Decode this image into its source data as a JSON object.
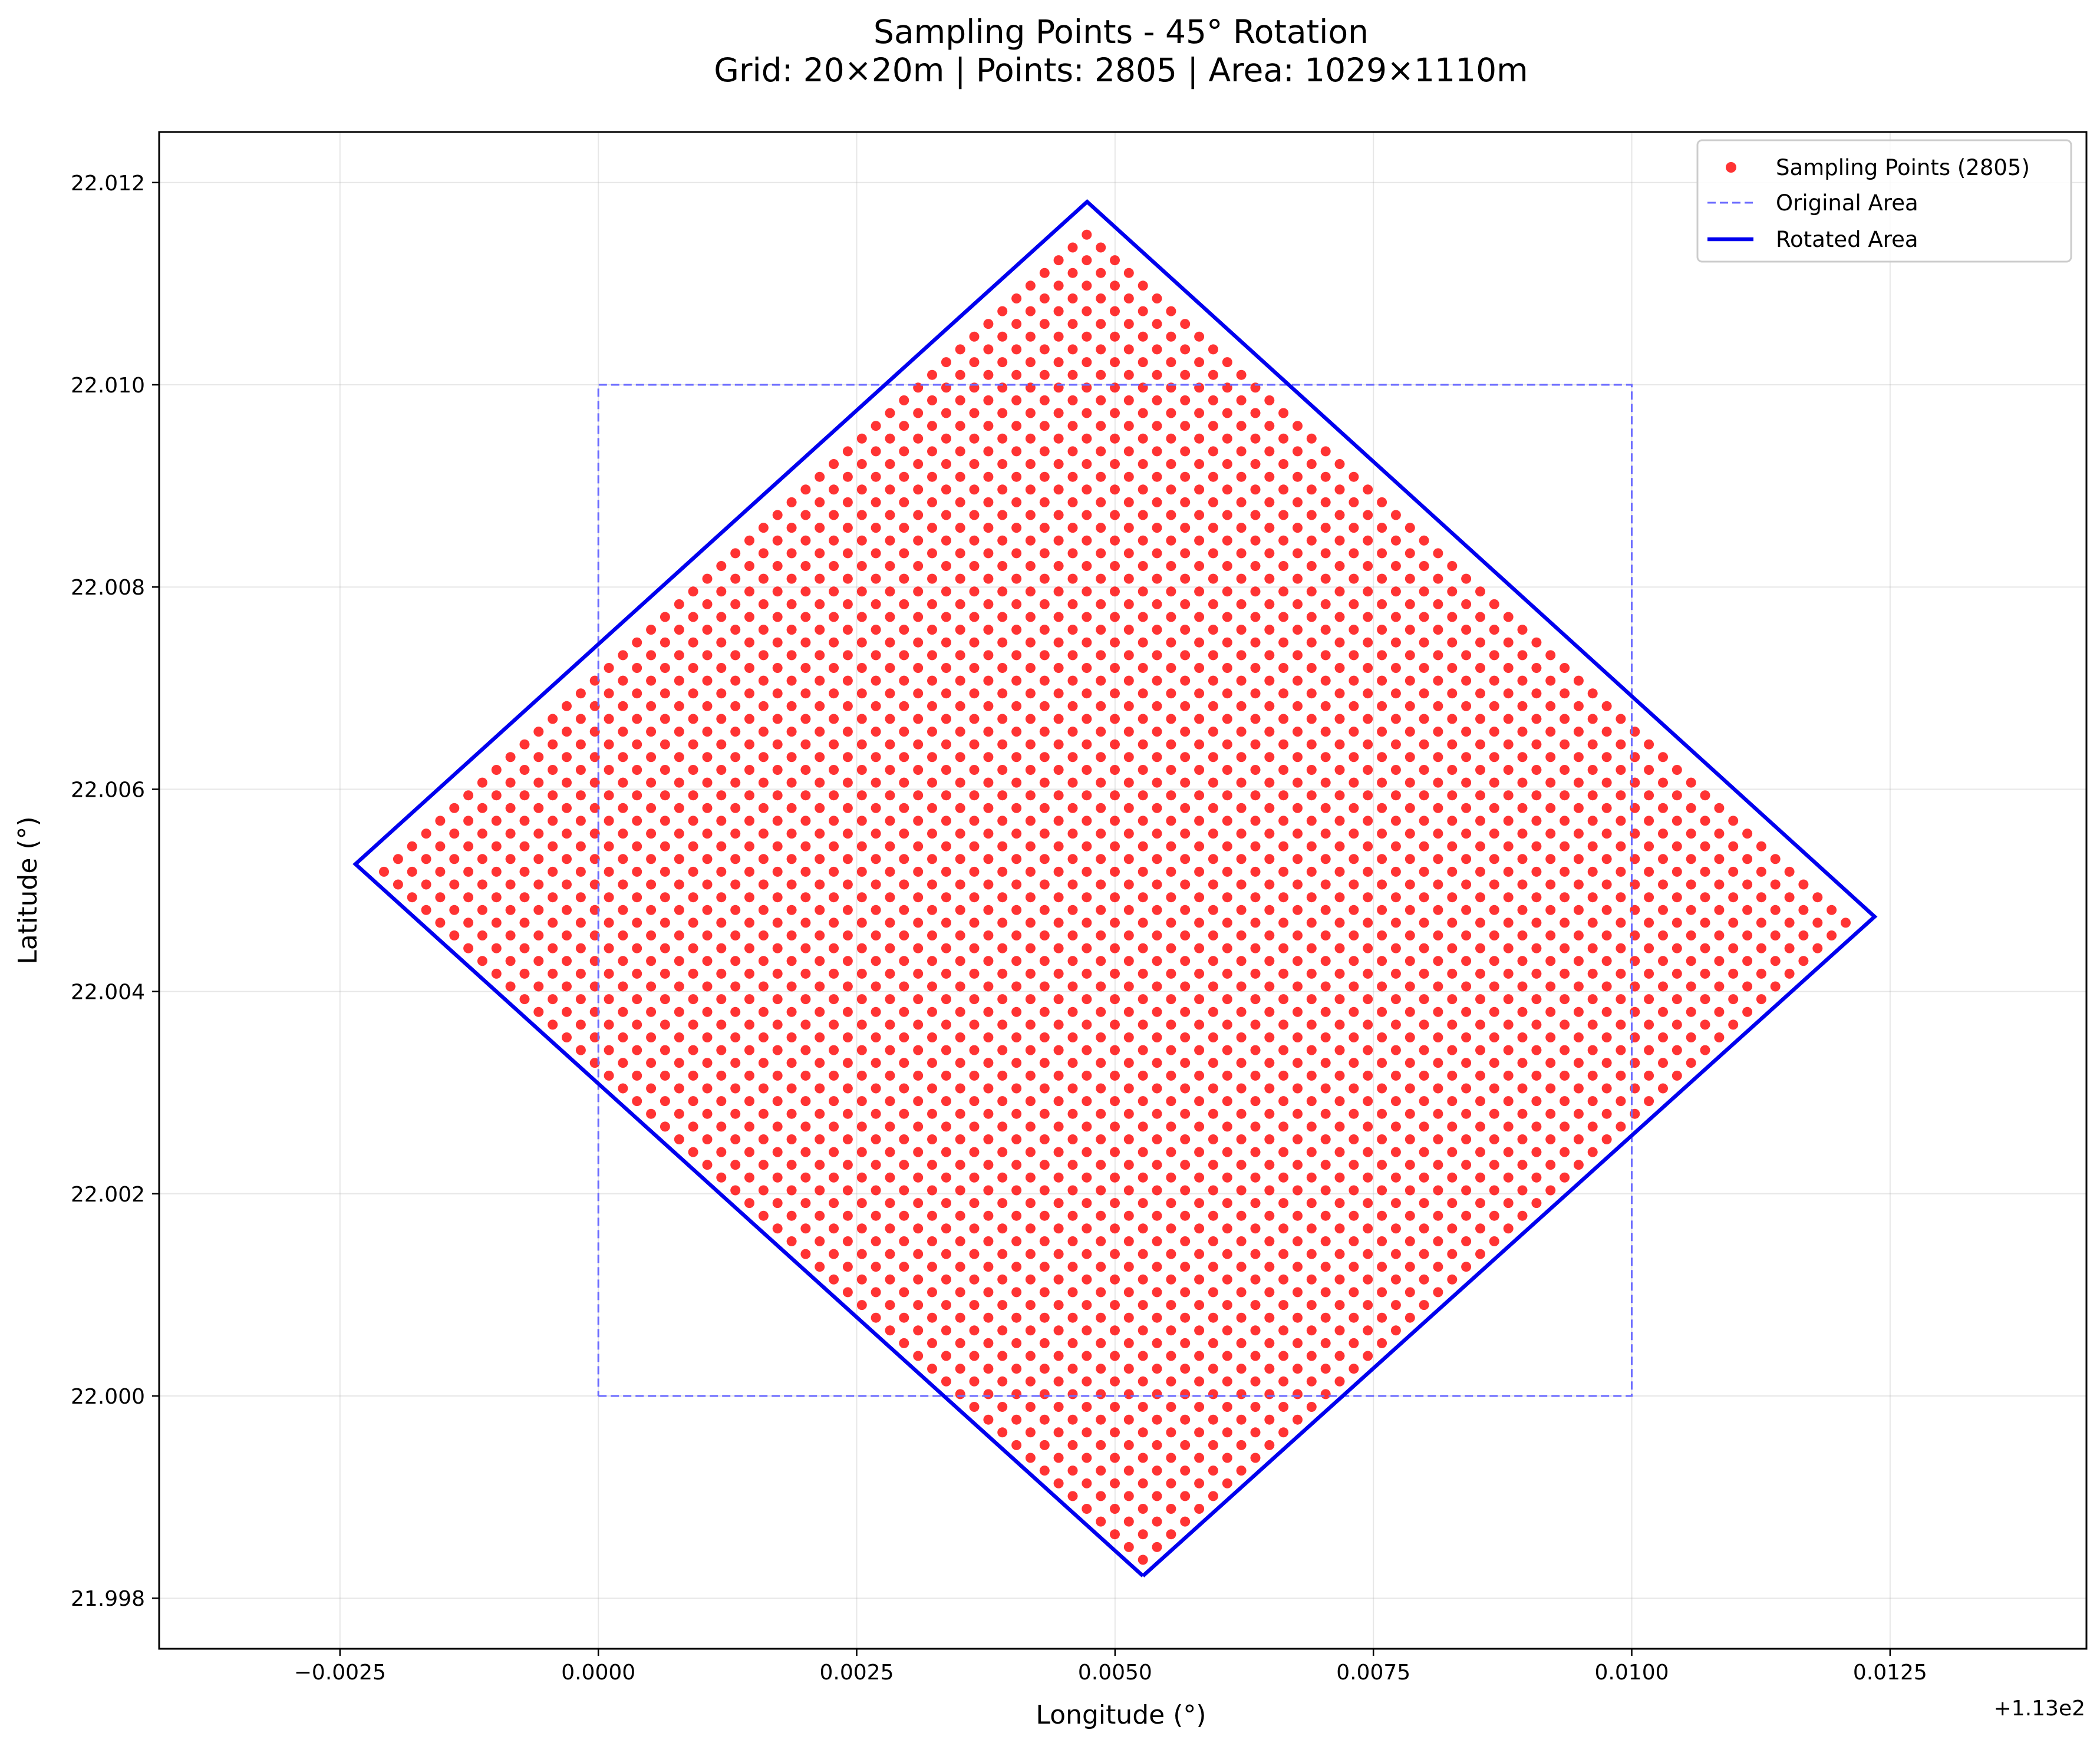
{
  "chart_data": {
    "type": "scatter",
    "title": "Sampling Points - 45° Rotation",
    "subtitle": "Grid: 20×20m | Points: 2805 | Area: 1029×1110m",
    "xlabel": "Longitude (°)",
    "ylabel": "Latitude (°)",
    "x_offset_label": "+1.13e2",
    "x_offset": 113,
    "xlim": [
      112.99575,
      113.0144
    ],
    "ylim": [
      21.9975,
      22.0125
    ],
    "x_ticks": [
      -0.0025,
      0.0,
      0.0025,
      0.005,
      0.0075,
      0.01,
      0.0125
    ],
    "x_tick_labels": [
      "−0.0025",
      "0.0000",
      "0.0025",
      "0.0050",
      "0.0075",
      "0.0100",
      "0.0125"
    ],
    "y_ticks": [
      21.998,
      22.0,
      22.002,
      22.004,
      22.006,
      22.008,
      22.01,
      22.012
    ],
    "y_tick_labels": [
      "21.998",
      "22.000",
      "22.002",
      "22.004",
      "22.006",
      "22.008",
      "22.010",
      "22.012"
    ],
    "grid": true,
    "legend_position": "top-right",
    "series": [
      {
        "name": "Sampling Points (2805)",
        "kind": "scatter",
        "color": "#ff0000",
        "lattice": {
          "origin": [
            113.00527,
            21.99838
          ],
          "u_step": [
            0.000136,
            0.000126
          ],
          "v_step": [
            -0.000136,
            0.000126
          ],
          "u_count": 51,
          "v_count": 55
        }
      },
      {
        "name": "Original Area",
        "kind": "line",
        "style": "dashed",
        "color": "#6b6bff",
        "points": [
          [
            113.0,
            22.0
          ],
          [
            113.01,
            22.0
          ],
          [
            113.01,
            22.01
          ],
          [
            113.0,
            22.01
          ],
          [
            113.0,
            22.0
          ]
        ]
      },
      {
        "name": "Rotated Area",
        "kind": "line",
        "style": "solid",
        "color": "#0000ee",
        "points": [
          [
            113.00527,
            21.99822
          ],
          [
            113.01235,
            22.00474
          ],
          [
            113.00473,
            22.01181
          ],
          [
            112.99765,
            22.00526
          ],
          [
            113.00527,
            21.99822
          ]
        ]
      }
    ]
  }
}
